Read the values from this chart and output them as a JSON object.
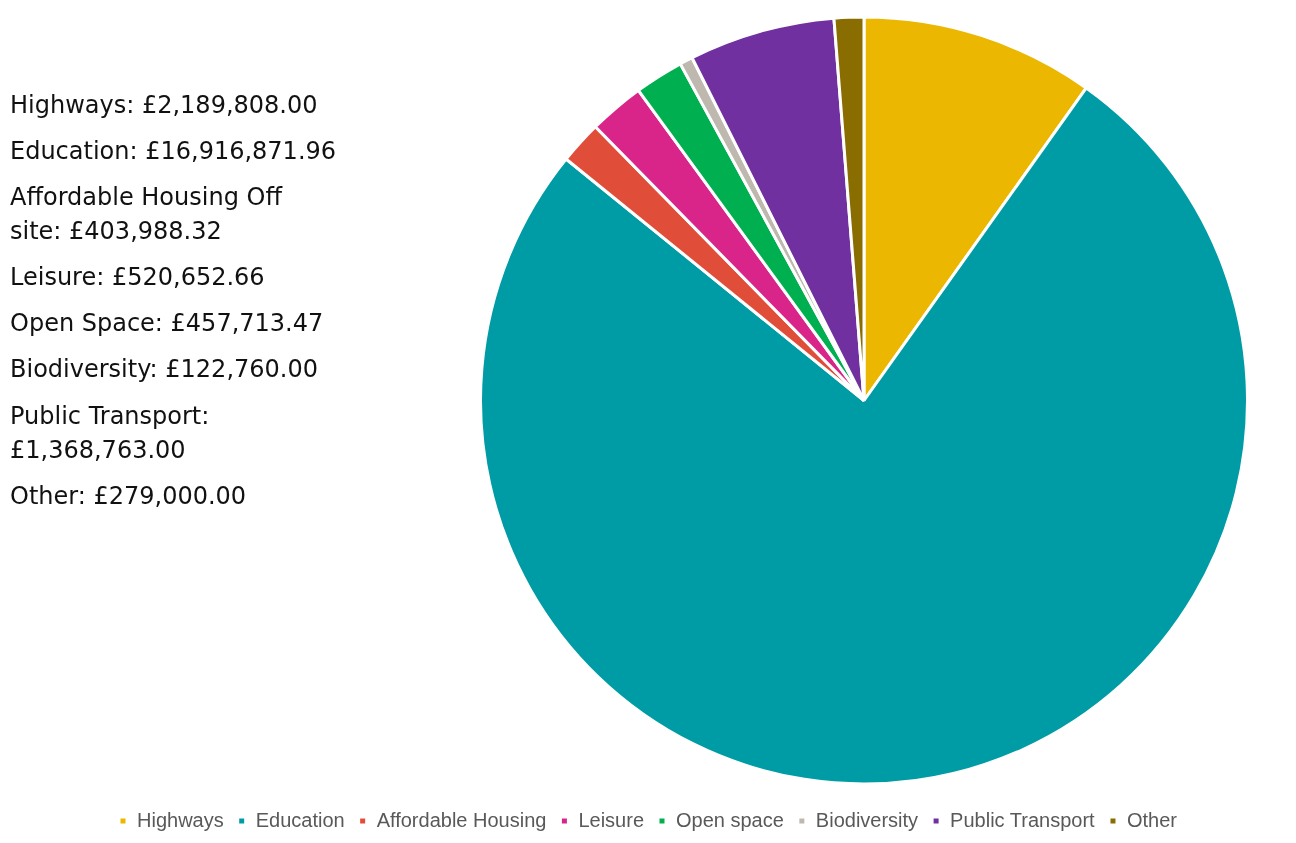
{
  "chart_data": {
    "type": "pie",
    "categories": [
      "Highways",
      "Education",
      "Affordable Housing",
      "Leisure",
      "Open space",
      "Biodiversity",
      "Public Transport",
      "Other"
    ],
    "values": [
      9.84,
      76.0,
      1.81,
      2.34,
      2.06,
      0.55,
      6.15,
      1.25
    ],
    "colors": [
      "#ebb700",
      "#009ca6",
      "#e04e39",
      "#d9258a",
      "#00b050",
      "#bfb8af",
      "#7030a0",
      "#8a6d00"
    ],
    "legend": "bottom",
    "annotations": [
      "Highways: £2,189,808.00",
      "Education: £16,916,871.96",
      "Affordable Housing Off site: £403,988.32",
      "Leisure: £520,652.66",
      "Open Space: £457,713.47",
      "Biodiversity: £122,760.00",
      "Public Transport: £1,368,763.00",
      "Other: £279,000.00"
    ]
  }
}
